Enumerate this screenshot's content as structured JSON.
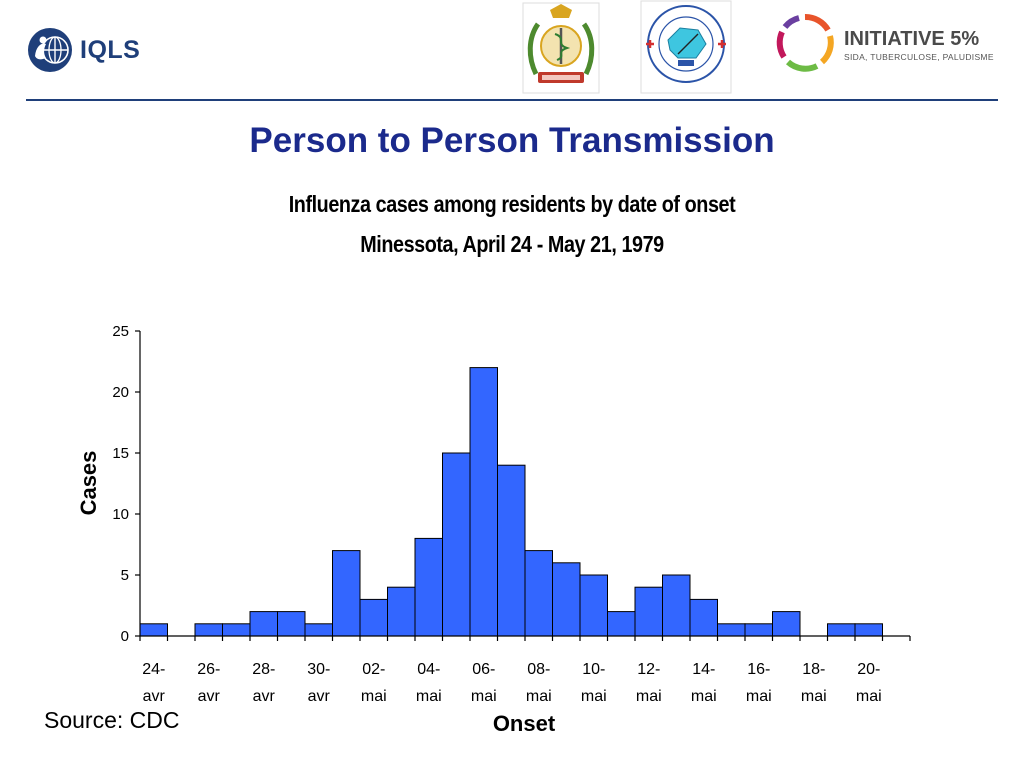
{
  "header": {
    "logo_text": "IQLS",
    "initiative_title": "INITIATIVE 5%",
    "initiative_subtitle": "SIDA, TUBERCULOSE, PALUDISME",
    "colors": {
      "brand_blue": "#1f3f7a",
      "title_blue": "#1b2a8c"
    }
  },
  "slide_title": "Person to Person Transmission",
  "source": "Source: CDC",
  "chart_data": {
    "type": "bar",
    "title": "Influenza cases among residents  by date of onset",
    "subtitle": "Minessota,  April 24 - May 21, 1979",
    "xlabel": "Onset",
    "ylabel": "Cases",
    "ylim": [
      0,
      25
    ],
    "yticks": [
      0,
      5,
      10,
      15,
      20,
      25
    ],
    "grid": false,
    "bar_color": "#3366ff",
    "categories": [
      "24-avr",
      "25-avr",
      "26-avr",
      "27-avr",
      "28-avr",
      "29-avr",
      "30-avr",
      "01-mai",
      "02-mai",
      "03-mai",
      "04-mai",
      "05-mai",
      "06-mai",
      "07-mai",
      "08-mai",
      "09-mai",
      "10-mai",
      "11-mai",
      "12-mai",
      "13-mai",
      "14-mai",
      "15-mai",
      "16-mai",
      "17-mai",
      "18-mai",
      "19-mai",
      "20-mai",
      "21-mai"
    ],
    "values": [
      1,
      0,
      1,
      1,
      2,
      2,
      1,
      7,
      3,
      4,
      8,
      15,
      22,
      14,
      7,
      6,
      5,
      2,
      4,
      5,
      3,
      1,
      1,
      2,
      0,
      1,
      1,
      0
    ],
    "xtick_labels": [
      {
        "top": "24-",
        "bottom": "avr"
      },
      {
        "top": "26-",
        "bottom": "avr"
      },
      {
        "top": "28-",
        "bottom": "avr"
      },
      {
        "top": "30-",
        "bottom": "avr"
      },
      {
        "top": "02-",
        "bottom": "mai"
      },
      {
        "top": "04-",
        "bottom": "mai"
      },
      {
        "top": "06-",
        "bottom": "mai"
      },
      {
        "top": "08-",
        "bottom": "mai"
      },
      {
        "top": "10-",
        "bottom": "mai"
      },
      {
        "top": "12-",
        "bottom": "mai"
      },
      {
        "top": "14-",
        "bottom": "mai"
      },
      {
        "top": "16-",
        "bottom": "mai"
      },
      {
        "top": "18-",
        "bottom": "mai"
      },
      {
        "top": "20-",
        "bottom": "mai"
      }
    ]
  }
}
